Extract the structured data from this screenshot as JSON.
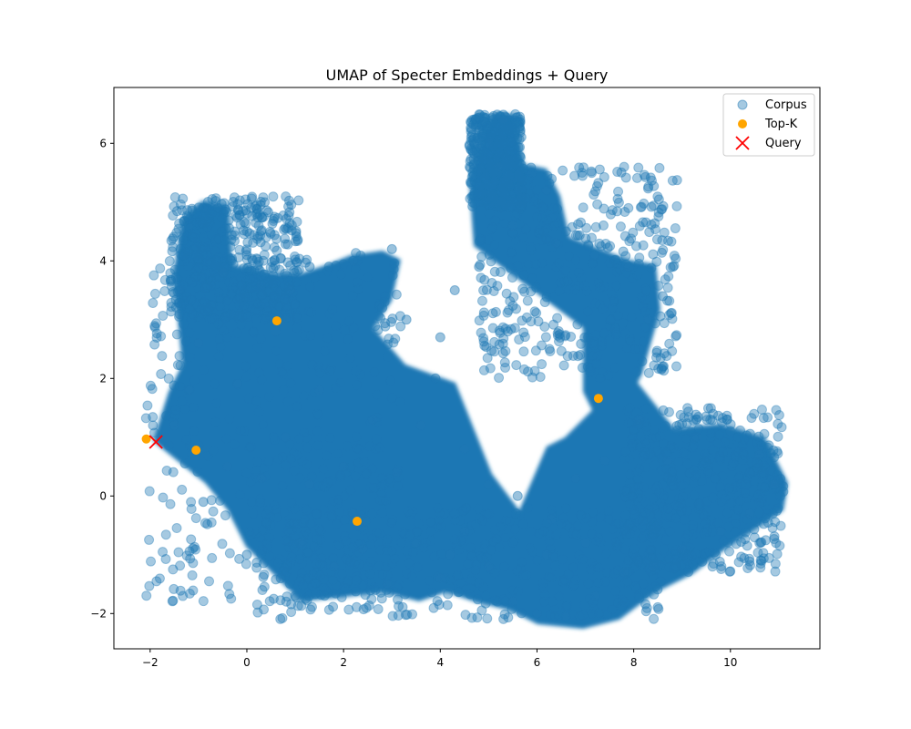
{
  "chart_data": {
    "type": "scatter",
    "title": "UMAP of Specter Embeddings + Query",
    "xlabel": "",
    "ylabel": "",
    "xlim": [
      -2.75,
      11.85
    ],
    "ylim": [
      -2.6,
      6.95
    ],
    "xticks": [
      -2,
      0,
      2,
      4,
      6,
      8,
      10
    ],
    "yticks": [
      -2,
      0,
      2,
      4,
      6
    ],
    "xtick_labels": [
      "−2",
      "0",
      "2",
      "4",
      "6",
      "8",
      "10"
    ],
    "ytick_labels": [
      "−2",
      "0",
      "2",
      "4",
      "6"
    ],
    "grid": false,
    "legend_position": "top-right",
    "colors": {
      "corpus": "#1f77b4",
      "topk": "#ffa500",
      "query": "#ff0000"
    },
    "series": [
      {
        "name": "Corpus",
        "marker": "circle",
        "alpha": 0.4,
        "sample_points": [
          [
            -1.5,
            1.2
          ],
          [
            -1.2,
            1.8
          ],
          [
            -1.0,
            2.6
          ],
          [
            -1.4,
            3.5
          ],
          [
            -1.2,
            4.6
          ],
          [
            -0.9,
            4.9
          ],
          [
            -0.6,
            4.9
          ],
          [
            -0.5,
            3.8
          ],
          [
            0.0,
            4.1
          ],
          [
            0.3,
            3.6
          ],
          [
            0.6,
            2.8
          ],
          [
            0.9,
            3.5
          ],
          [
            1.3,
            3.9
          ],
          [
            2.2,
            4.0
          ],
          [
            3.0,
            4.2
          ],
          [
            2.8,
            3.2
          ],
          [
            1.5,
            1.8
          ],
          [
            0.8,
            1.0
          ],
          [
            0.3,
            0.3
          ],
          [
            -0.4,
            0.5
          ],
          [
            -0.9,
            -0.1
          ],
          [
            0.0,
            -1.0
          ],
          [
            0.7,
            -1.4
          ],
          [
            1.0,
            -1.7
          ],
          [
            1.8,
            -1.2
          ],
          [
            2.4,
            -0.9
          ],
          [
            2.9,
            -1.5
          ],
          [
            3.5,
            -0.8
          ],
          [
            4.0,
            -1.4
          ],
          [
            4.5,
            -0.6
          ],
          [
            5.0,
            -1.2
          ],
          [
            5.5,
            -1.8
          ],
          [
            6.0,
            -2.0
          ],
          [
            6.6,
            -2.05
          ],
          [
            7.2,
            -1.7
          ],
          [
            7.8,
            -1.3
          ],
          [
            8.4,
            -1.2
          ],
          [
            9.0,
            -0.9
          ],
          [
            9.8,
            -0.6
          ],
          [
            10.4,
            -0.3
          ],
          [
            10.9,
            0.2
          ],
          [
            10.6,
            0.7
          ],
          [
            10.0,
            1.1
          ],
          [
            9.3,
            1.0
          ],
          [
            8.7,
            0.6
          ],
          [
            8.1,
            1.3
          ],
          [
            8.6,
            2.2
          ],
          [
            8.3,
            3.0
          ],
          [
            8.6,
            3.4
          ],
          [
            7.9,
            3.9
          ],
          [
            7.2,
            4.1
          ],
          [
            6.4,
            4.3
          ],
          [
            6.2,
            5.2
          ],
          [
            5.9,
            5.5
          ],
          [
            5.5,
            4.6
          ],
          [
            5.2,
            5.6
          ],
          [
            5.0,
            6.0
          ],
          [
            5.3,
            6.4
          ],
          [
            4.8,
            3.9
          ],
          [
            4.3,
            3.5
          ],
          [
            4.0,
            2.7
          ],
          [
            3.3,
            3.0
          ],
          [
            3.9,
            2.0
          ],
          [
            3.6,
            1.2
          ],
          [
            3.1,
            0.4
          ],
          [
            2.6,
            1.3
          ],
          [
            2.0,
            0.5
          ],
          [
            1.3,
            0.2
          ],
          [
            4.5,
            0.8
          ],
          [
            5.0,
            0.2
          ],
          [
            5.6,
            0.0
          ],
          [
            6.3,
            -0.4
          ],
          [
            6.8,
            0.3
          ],
          [
            7.4,
            0.6
          ],
          [
            7.0,
            -0.8
          ],
          [
            6.2,
            -1.0
          ],
          [
            4.2,
            -1.0
          ],
          [
            2.2,
            -0.3
          ],
          [
            1.1,
            -0.8
          ],
          [
            -0.2,
            1.9
          ]
        ],
        "regions": [
          {
            "label": "upper-left lobe",
            "x_range": [
              -1.6,
              1.1
            ],
            "y_range": [
              3.0,
              5.1
            ]
          },
          {
            "label": "left body",
            "x_range": [
              -2.1,
              3.2
            ],
            "y_range": [
              -1.8,
              4.2
            ]
          },
          {
            "label": "bottom band",
            "x_range": [
              0.2,
              8.6
            ],
            "y_range": [
              -2.1,
              -0.2
            ]
          },
          {
            "label": "top spike",
            "x_range": [
              4.6,
              5.7
            ],
            "y_range": [
              4.9,
              6.5
            ]
          },
          {
            "label": "right upper",
            "x_range": [
              4.8,
              8.9
            ],
            "y_range": [
              2.0,
              5.6
            ]
          },
          {
            "label": "right lobe",
            "x_range": [
              7.8,
              11.1
            ],
            "y_range": [
              -1.3,
              1.5
            ]
          }
        ]
      },
      {
        "name": "Top-K",
        "marker": "circle",
        "points": [
          [
            -2.08,
            0.97
          ],
          [
            -1.05,
            0.78
          ],
          [
            0.62,
            2.98
          ],
          [
            2.28,
            -0.43
          ],
          [
            7.27,
            1.66
          ]
        ]
      },
      {
        "name": "Query",
        "marker": "x",
        "points": [
          [
            -1.88,
            0.92
          ]
        ]
      }
    ]
  }
}
